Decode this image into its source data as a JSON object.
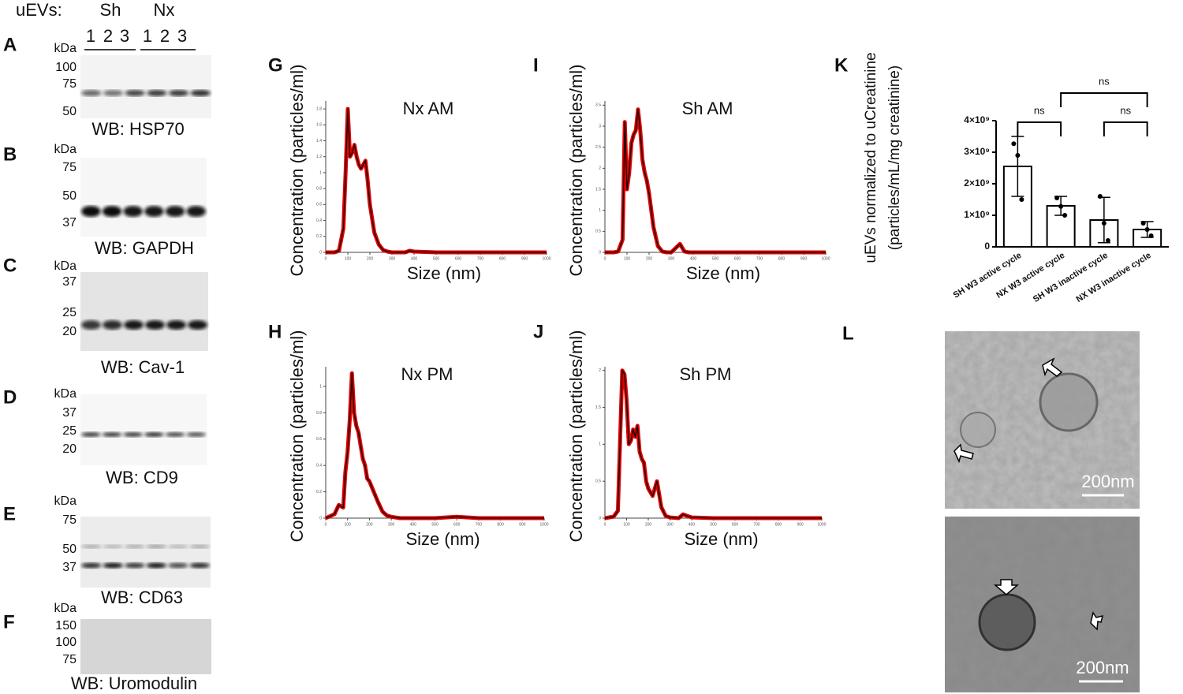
{
  "figure": {
    "blots": {
      "header": {
        "label": "uEVs:",
        "groups": [
          "Sh",
          "Nx"
        ],
        "lanes": [
          1,
          2,
          3,
          1,
          2,
          3
        ]
      },
      "panels": [
        {
          "letter": "A",
          "unit": "kDa",
          "markers": [
            100,
            75,
            50
          ],
          "wb": "WB: HSP70"
        },
        {
          "letter": "B",
          "unit": "kDa",
          "markers": [
            75,
            50,
            37
          ],
          "wb": "WB: GAPDH"
        },
        {
          "letter": "C",
          "unit": "kDa",
          "markers": [
            37,
            25,
            20
          ],
          "wb": "WB: Cav-1"
        },
        {
          "letter": "D",
          "unit": "kDa",
          "markers": [
            37,
            25,
            20
          ],
          "wb": "WB: CD9"
        },
        {
          "letter": "E",
          "unit": "kDa",
          "markers": [
            75,
            50,
            37
          ],
          "wb": "WB: CD63"
        },
        {
          "letter": "F",
          "unit": "kDa",
          "markers": [
            150,
            100,
            75
          ],
          "wb": "WB: Uromodulin"
        }
      ]
    },
    "tem": {
      "letter": "L",
      "scale_bars": [
        "200nm",
        "200nm"
      ]
    }
  },
  "chart_data": [
    {
      "type": "line",
      "letter": "G",
      "title": "Nx AM",
      "xlabel": "Size (nm)",
      "ylabel": "Concentration (particles/ml)",
      "x": [
        0,
        40,
        60,
        80,
        90,
        100,
        110,
        120,
        130,
        140,
        150,
        160,
        170,
        180,
        190,
        200,
        220,
        240,
        260,
        280,
        300,
        340,
        360,
        380,
        400,
        500,
        600,
        700,
        800,
        900,
        1000
      ],
      "xlim": [
        0,
        1000
      ],
      "xticks": [
        0,
        100,
        200,
        300,
        400,
        500,
        600,
        700,
        800,
        900,
        1000
      ],
      "ylim": [
        0,
        1.9
      ],
      "yticks": [
        0,
        0.2,
        0.4,
        0.6,
        0.8,
        1,
        1.2,
        1.4,
        1.6,
        1.8
      ],
      "band_color": "#e00000",
      "series": [
        {
          "color": "#000000",
          "values": [
            0,
            0,
            0.02,
            0.3,
            1.0,
            1.8,
            1.2,
            1.25,
            1.35,
            1.2,
            1.1,
            1.05,
            1.1,
            1.15,
            0.9,
            0.6,
            0.25,
            0.1,
            0.03,
            0.01,
            0,
            0,
            0,
            0.02,
            0.01,
            0,
            0,
            0,
            0,
            0,
            0
          ]
        }
      ]
    },
    {
      "type": "line",
      "letter": "I",
      "title": "Sh AM",
      "xlabel": "Size (nm)",
      "ylabel": "Concentration (particles/ml)",
      "x": [
        0,
        40,
        60,
        80,
        90,
        100,
        110,
        120,
        130,
        140,
        150,
        160,
        170,
        180,
        190,
        200,
        220,
        240,
        260,
        280,
        300,
        340,
        360,
        380,
        400,
        500,
        600,
        700,
        800,
        900,
        1000
      ],
      "xlim": [
        0,
        1000
      ],
      "xticks": [
        0,
        100,
        200,
        300,
        400,
        500,
        600,
        700,
        800,
        900,
        1000
      ],
      "ylim": [
        0,
        3.6
      ],
      "yticks": [
        0,
        0.5,
        1,
        1.5,
        2,
        2.5,
        3,
        3.5
      ],
      "band_color": "#e00000",
      "series": [
        {
          "color": "#000000",
          "values": [
            0,
            0,
            0.02,
            0.3,
            3.1,
            1.5,
            1.9,
            2.6,
            2.8,
            2.9,
            3.4,
            2.9,
            2.2,
            1.9,
            1.7,
            1.4,
            0.6,
            0.15,
            0.02,
            0,
            0,
            0.2,
            0.02,
            0,
            0,
            0,
            0,
            0,
            0,
            0,
            0
          ]
        }
      ]
    },
    {
      "type": "line",
      "letter": "H",
      "title": "Nx PM",
      "xlabel": "Size (nm)",
      "ylabel": "Concentration (particles/ml)",
      "x": [
        0,
        40,
        60,
        80,
        90,
        100,
        110,
        120,
        130,
        140,
        150,
        160,
        170,
        180,
        190,
        200,
        220,
        240,
        260,
        280,
        300,
        340,
        360,
        380,
        400,
        500,
        600,
        700,
        800,
        900,
        1000
      ],
      "xlim": [
        0,
        1000
      ],
      "xticks": [
        0,
        100,
        200,
        300,
        400,
        500,
        600,
        700,
        800,
        900,
        1000
      ],
      "ylim": [
        0,
        1.15
      ],
      "yticks": [
        0,
        0.2,
        0.4,
        0.6,
        0.8,
        1
      ],
      "band_color": "#e00000",
      "series": [
        {
          "color": "#000000",
          "values": [
            0,
            0.03,
            0.1,
            0.08,
            0.35,
            0.5,
            0.75,
            1.1,
            0.8,
            0.7,
            0.65,
            0.55,
            0.45,
            0.4,
            0.3,
            0.28,
            0.2,
            0.12,
            0.05,
            0.02,
            0.01,
            0,
            0,
            0,
            0,
            0,
            0.01,
            0,
            0,
            0,
            0
          ]
        }
      ]
    },
    {
      "type": "line",
      "letter": "J",
      "title": "Sh PM",
      "xlabel": "Size (nm)",
      "ylabel": "Concentration (particles/ml)",
      "x": [
        0,
        40,
        60,
        80,
        90,
        100,
        110,
        120,
        130,
        140,
        150,
        160,
        170,
        180,
        190,
        200,
        220,
        240,
        260,
        280,
        300,
        340,
        360,
        380,
        400,
        500,
        600,
        700,
        800,
        900,
        1000
      ],
      "xlim": [
        0,
        1000
      ],
      "xticks": [
        0,
        100,
        200,
        300,
        400,
        500,
        600,
        700,
        800,
        900,
        1000
      ],
      "ylim": [
        0,
        2.05
      ],
      "yticks": [
        0,
        0.5,
        1,
        1.5,
        2
      ],
      "band_color": "#e00000",
      "series": [
        {
          "color": "#000000",
          "values": [
            0,
            0.02,
            0.1,
            2.0,
            1.95,
            1.6,
            1.0,
            1.05,
            1.2,
            1.1,
            1.25,
            0.9,
            0.8,
            0.75,
            0.5,
            0.4,
            0.3,
            0.5,
            0.15,
            0.03,
            0.01,
            0,
            0.05,
            0.03,
            0.01,
            0,
            0,
            0,
            0,
            0,
            0
          ]
        }
      ]
    },
    {
      "type": "bar",
      "letter": "K",
      "ylabel": [
        "uEVs normalized to uCreatinine",
        "(particles/mL/mg creatinine)"
      ],
      "categories": [
        "SH W3 active cycle",
        "NX W3 active cycle",
        "SH W3 inactive cycle",
        "NX W3 inactive cycle"
      ],
      "values": [
        2550000000,
        1300000000,
        850000000,
        550000000
      ],
      "errors": [
        950000000,
        300000000,
        720000000,
        250000000
      ],
      "points": [
        [
          3270000000,
          2900000000,
          1500000000
        ],
        [
          1550000000,
          1280000000,
          1000000000
        ],
        [
          1600000000,
          750000000,
          200000000
        ],
        [
          750000000,
          550000000,
          350000000
        ]
      ],
      "color": "#ffffff",
      "edge_color": "#000000",
      "ylim": [
        0,
        4000000000
      ],
      "yticks": [
        0,
        {
          "value": 1000000000,
          "label": "1×10⁹"
        },
        {
          "value": 2000000000,
          "label": "2×10⁹"
        },
        {
          "value": 3000000000,
          "label": "3×10⁹"
        },
        {
          "value": 4000000000,
          "label": "4×10⁹"
        }
      ],
      "annotations": [
        "ns",
        "ns",
        "ns"
      ]
    }
  ]
}
